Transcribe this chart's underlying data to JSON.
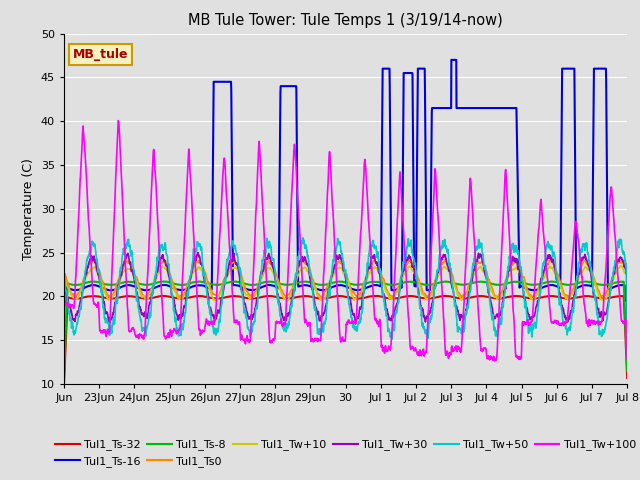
{
  "title": "MB Tule Tower: Tule Temps 1 (3/19/14-now)",
  "ylabel": "Temperature (C)",
  "ylim": [
    10,
    50
  ],
  "yticks": [
    10,
    15,
    20,
    25,
    30,
    35,
    40,
    45,
    50
  ],
  "bg_color": "#e0e0e0",
  "grid_color": "#ffffff",
  "annotation_label": "MB_tule",
  "annotation_color": "#aa0000",
  "annotation_bg": "#f5f0c0",
  "annotation_border": "#cc9900",
  "xtick_labels": [
    "Jun",
    "23Jun",
    "24Jun",
    "25Jun",
    "26Jun",
    "27Jun",
    "28Jun",
    "29Jun",
    "30",
    "Jul 1",
    "Jul 2",
    "Jul 3",
    "Jul 4",
    "Jul 5",
    "Jul 6",
    "Jul 7",
    "Jul 8"
  ],
  "xtick_positions": [
    0,
    1,
    2,
    3,
    4,
    5,
    6,
    7,
    8,
    9,
    10,
    11,
    12,
    13,
    14,
    15,
    16
  ],
  "series": [
    {
      "label": "Tul1_Ts-32",
      "color": "#dd0000",
      "lw": 1.5
    },
    {
      "label": "Tul1_Ts-16",
      "color": "#0000dd",
      "lw": 1.5
    },
    {
      "label": "Tul1_Ts-8",
      "color": "#00bb00",
      "lw": 1.5
    },
    {
      "label": "Tul1_Ts0",
      "color": "#ff8800",
      "lw": 1.2
    },
    {
      "label": "Tul1_Tw+10",
      "color": "#cccc00",
      "lw": 1.2
    },
    {
      "label": "Tul1_Tw+30",
      "color": "#9900bb",
      "lw": 1.2
    },
    {
      "label": "Tul1_Tw+50",
      "color": "#00cccc",
      "lw": 1.2
    },
    {
      "label": "Tul1_Tw+100",
      "color": "#ff00ff",
      "lw": 1.2
    }
  ]
}
